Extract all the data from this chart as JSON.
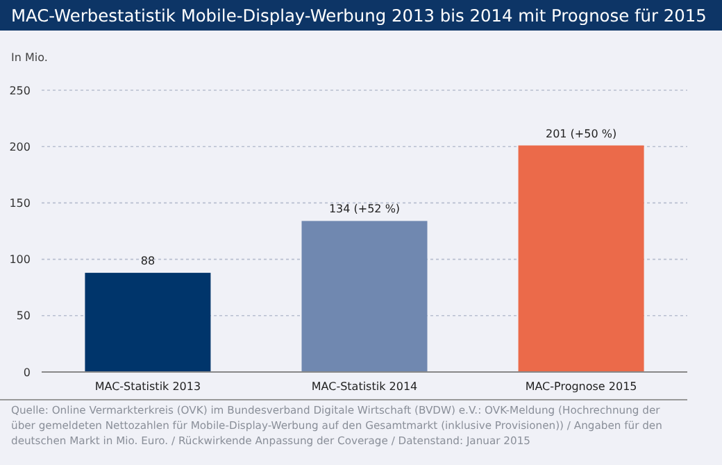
{
  "chart_data": {
    "type": "bar",
    "title": "MAC-Werbestatistik Mobile-Display-Werbung 2013 bis 2014 mit Prognose für 2015",
    "ylabel": "In Mio.",
    "categories": [
      "MAC-Statistik 2013",
      "MAC-Statistik 2014",
      "MAC-Prognose 2015"
    ],
    "values": [
      88,
      134,
      201
    ],
    "colors": [
      "#00356b",
      "#7088b0",
      "#eb6a4a"
    ],
    "value_labels": [
      "88",
      "134 (+52 %)",
      "201 (+50 %)"
    ],
    "ylim": [
      0,
      250
    ],
    "yticks": [
      0,
      50,
      100,
      150,
      200,
      250
    ],
    "grid": "y",
    "annotations": [
      "Quelle: Online Vermarkterkreis (OVK) im Bundesverband Digitale Wirtschaft (BVDW) e.V.: OVK-Meldung (Hochrechnung der über gemeldeten Nettozahlen für Mobile-Display-Werbung auf den Gesamtmarkt (inklusive Provisionen)) / Angaben für den deutschen Markt in Mio. Euro. / Rückwirkende Anpassung der Coverage / Datenstand: Januar 2015"
    ]
  }
}
